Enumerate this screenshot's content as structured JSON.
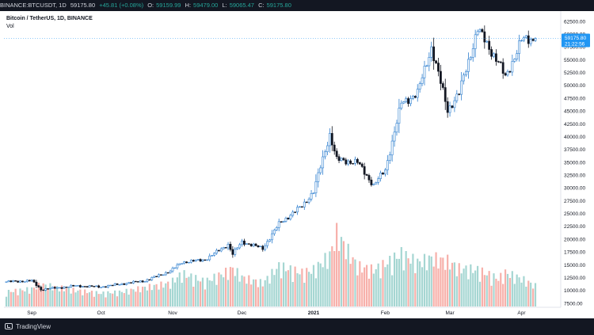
{
  "topbar": {
    "symbol": "BINANCE:BTCUSDT, 1D",
    "last": "59175.80",
    "change": "+45.81 (+0.08%)",
    "open_label": "O:",
    "open": "59159.99",
    "high_label": "H:",
    "high": "59479.00",
    "low_label": "L:",
    "low": "59065.47",
    "close_label": "C:",
    "close": "59175.80"
  },
  "legend": {
    "title": "Bitcoin / TetherUS, 1D, BINANCE",
    "volume_label": "Vol"
  },
  "footer": {
    "brand": "TradingView"
  },
  "colors": {
    "up": "#26a69a",
    "down": "#ef5350",
    "vol_up": "#a5d6d2",
    "vol_down": "#f7b0aa",
    "price_tag": "#2196f3"
  },
  "chart_data": {
    "type": "candlestick",
    "title": "Bitcoin / TetherUS, 1D, BINANCE",
    "y_axis_ticks": [
      "62500.00",
      "60000.00",
      "57500.00",
      "55000.00",
      "52500.00",
      "50000.00",
      "47500.00",
      "45000.00",
      "42500.00",
      "40000.00",
      "37500.00",
      "35000.00",
      "32500.00",
      "30000.00",
      "27500.00",
      "25000.00",
      "22500.00",
      "20000.00",
      "17500.00",
      "15000.00",
      "12500.00",
      "10000.00",
      "7500.00"
    ],
    "ylim": [
      7500,
      62500
    ],
    "x_ticks": [
      "Sep",
      "Oct",
      "Nov",
      "Dec",
      "2021",
      "Feb",
      "Mar",
      "Apr"
    ],
    "last_price_tag": {
      "price": "59175.80",
      "countdown": "21:22:56"
    },
    "anchors": [
      {
        "date": "2020-08-21",
        "price": 11700,
        "vol": 20
      },
      {
        "date": "2020-09-01",
        "price": 11900,
        "vol": 24
      },
      {
        "date": "2020-09-05",
        "price": 10200,
        "vol": 30
      },
      {
        "date": "2020-09-20",
        "price": 10900,
        "vol": 22
      },
      {
        "date": "2020-10-01",
        "price": 10700,
        "vol": 18
      },
      {
        "date": "2020-10-10",
        "price": 11300,
        "vol": 20
      },
      {
        "date": "2020-10-20",
        "price": 11900,
        "vol": 26
      },
      {
        "date": "2020-10-31",
        "price": 13800,
        "vol": 32
      },
      {
        "date": "2020-11-05",
        "price": 15500,
        "vol": 45
      },
      {
        "date": "2020-11-15",
        "price": 16000,
        "vol": 34
      },
      {
        "date": "2020-11-25",
        "price": 19000,
        "vol": 48
      },
      {
        "date": "2020-11-27",
        "price": 17100,
        "vol": 52
      },
      {
        "date": "2020-12-01",
        "price": 19500,
        "vol": 40
      },
      {
        "date": "2020-12-10",
        "price": 18200,
        "vol": 32
      },
      {
        "date": "2020-12-17",
        "price": 23000,
        "vol": 55
      },
      {
        "date": "2020-12-27",
        "price": 26500,
        "vol": 46
      },
      {
        "date": "2021-01-01",
        "price": 29300,
        "vol": 50
      },
      {
        "date": "2021-01-08",
        "price": 40500,
        "vol": 70
      },
      {
        "date": "2021-01-11",
        "price": 35500,
        "vol": 100
      },
      {
        "date": "2021-01-20",
        "price": 35000,
        "vol": 55
      },
      {
        "date": "2021-01-27",
        "price": 30500,
        "vol": 50
      },
      {
        "date": "2021-02-01",
        "price": 33500,
        "vol": 58
      },
      {
        "date": "2021-02-08",
        "price": 46500,
        "vol": 72
      },
      {
        "date": "2021-02-15",
        "price": 48500,
        "vol": 60
      },
      {
        "date": "2021-02-21",
        "price": 57500,
        "vol": 66
      },
      {
        "date": "2021-02-28",
        "price": 45200,
        "vol": 62
      },
      {
        "date": "2021-03-05",
        "price": 48500,
        "vol": 52
      },
      {
        "date": "2021-03-13",
        "price": 61000,
        "vol": 50
      },
      {
        "date": "2021-03-22",
        "price": 54500,
        "vol": 38
      },
      {
        "date": "2021-03-25",
        "price": 51500,
        "vol": 46
      },
      {
        "date": "2021-04-01",
        "price": 58800,
        "vol": 38
      },
      {
        "date": "2021-04-07",
        "price": 59175.8,
        "vol": 28
      }
    ]
  }
}
